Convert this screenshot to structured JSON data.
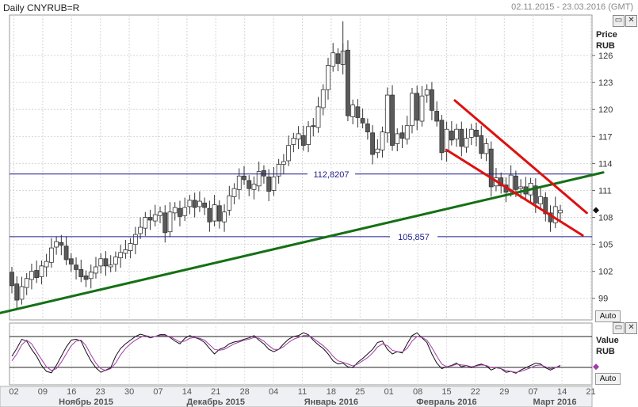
{
  "header": {
    "title": "Daily CNYRUB=R",
    "date_range": "02.11.2015 - 23.03.2016 (GMT)"
  },
  "main_panel": {
    "axis_title_1": "Price",
    "axis_title_2": "RUB",
    "auto_label": "Auto"
  },
  "osc_panel": {
    "axis_title_1": "Value",
    "axis_title_2": "RUB",
    "auto_label": "Auto"
  },
  "colors": {
    "up": "#ffffff",
    "down": "#5a5a5a",
    "hline": "#1c1c8c",
    "support": "#157015",
    "channel": "#dd1111",
    "osc_main": "#111111",
    "osc_signal": "#a23aa8"
  },
  "icons": [
    "window-menu-icon",
    "close-icon"
  ],
  "chart_data": {
    "type": "candlestick",
    "title": "Daily CNYRUB=R",
    "ylabel": "Price RUB",
    "ylim": [
      96.6,
      130.5
    ],
    "y_ticks": [
      99,
      102,
      105,
      108,
      111,
      114,
      117,
      120,
      123,
      126
    ],
    "x_ticks": [
      "02",
      "09",
      "16",
      "23",
      "30",
      "07",
      "14",
      "21",
      "28",
      "04",
      "11",
      "18",
      "25",
      "01",
      "08",
      "15",
      "22",
      "29",
      "07",
      "14",
      "21"
    ],
    "months": [
      "Ноябрь 2015",
      "Декабрь 2015",
      "Январь 2016",
      "Февраль 2016",
      "Март 2016"
    ],
    "levels": [
      {
        "label": "112,8207",
        "value": 112.8207
      },
      {
        "label": "105,857",
        "value": 105.857
      }
    ],
    "trendlines": [
      {
        "name": "support",
        "from": [
          "29.10.2015",
          97.3
        ],
        "to": [
          "24.03.2016",
          113.0
        ]
      },
      {
        "name": "channel-upper",
        "from": [
          "17.02.2016",
          121.0
        ],
        "to": [
          "20.03.2016",
          108.5
        ]
      },
      {
        "name": "channel-lower",
        "from": [
          "15.02.2016",
          115.5
        ],
        "to": [
          "19.03.2016",
          106.0
        ]
      }
    ],
    "series": [
      {
        "name": "price",
        "open_close": [
          [
            101.9,
            100.4
          ],
          [
            100.6,
            98.8
          ],
          [
            98.9,
            100.3
          ],
          [
            100.2,
            101.2
          ],
          [
            101.1,
            102.0
          ],
          [
            102.1,
            101.3
          ],
          [
            101.4,
            102.6
          ],
          [
            102.5,
            103.1
          ],
          [
            103.0,
            104.6
          ],
          [
            104.7,
            105.3
          ],
          [
            105.2,
            104.9
          ],
          [
            104.8,
            103.3
          ],
          [
            103.4,
            102.8
          ],
          [
            102.7,
            102.2
          ],
          [
            102.2,
            101.4
          ],
          [
            101.5,
            101.1
          ],
          [
            101.2,
            101.9
          ],
          [
            101.8,
            102.5
          ],
          [
            102.6,
            103.4
          ],
          [
            103.4,
            102.6
          ],
          [
            102.5,
            102.7
          ],
          [
            102.8,
            103.6
          ],
          [
            103.5,
            104.1
          ],
          [
            104.0,
            104.4
          ],
          [
            104.3,
            105.1
          ],
          [
            105.0,
            106.1
          ],
          [
            106.2,
            106.9
          ],
          [
            106.8,
            108.0
          ],
          [
            108.0,
            107.7
          ],
          [
            107.6,
            108.3
          ],
          [
            108.2,
            108.6
          ],
          [
            108.5,
            106.3
          ],
          [
            106.4,
            108.6
          ],
          [
            108.5,
            109.1
          ],
          [
            109.0,
            108.1
          ],
          [
            108.2,
            109.1
          ],
          [
            109.2,
            109.9
          ],
          [
            109.9,
            109.1
          ],
          [
            109.2,
            109.8
          ],
          [
            109.6,
            109.1
          ],
          [
            109.0,
            107.5
          ],
          [
            107.6,
            109.4
          ],
          [
            109.3,
            107.6
          ],
          [
            107.5,
            108.6
          ],
          [
            108.8,
            110.4
          ],
          [
            110.3,
            111.2
          ],
          [
            111.1,
            112.6
          ],
          [
            112.6,
            112.2
          ],
          [
            112.1,
            111.2
          ],
          [
            111.1,
            111.7
          ],
          [
            111.5,
            113.1
          ],
          [
            113.2,
            112.6
          ],
          [
            112.5,
            110.9
          ],
          [
            111.0,
            112.5
          ],
          [
            112.6,
            113.9
          ],
          [
            113.9,
            114.2
          ],
          [
            114.3,
            116.0
          ],
          [
            116.1,
            116.8
          ],
          [
            116.7,
            117.3
          ],
          [
            117.1,
            116.0
          ],
          [
            116.1,
            118.1
          ],
          [
            118.2,
            118.1
          ],
          [
            118.0,
            120.3
          ],
          [
            120.2,
            122.2
          ],
          [
            122.2,
            124.9
          ],
          [
            124.8,
            126.3
          ],
          [
            126.2,
            125.1
          ],
          [
            125.0,
            126.5
          ],
          [
            126.6,
            119.3
          ],
          [
            119.2,
            120.5
          ],
          [
            120.3,
            119.1
          ],
          [
            119.0,
            118.5
          ],
          [
            118.4,
            117.5
          ],
          [
            117.4,
            115.0
          ],
          [
            115.2,
            115.6
          ],
          [
            115.5,
            117.5
          ],
          [
            117.4,
            121.6
          ],
          [
            121.6,
            116.0
          ],
          [
            116.2,
            117.3
          ],
          [
            117.4,
            116.8
          ],
          [
            116.7,
            118.2
          ],
          [
            118.2,
            121.8
          ],
          [
            121.8,
            118.8
          ],
          [
            118.7,
            121.5
          ],
          [
            121.6,
            122.2
          ],
          [
            122.2,
            119.9
          ],
          [
            119.8,
            118.7
          ],
          [
            118.8,
            115.2
          ],
          [
            115.3,
            117.8
          ],
          [
            117.6,
            116.6
          ],
          [
            116.7,
            117.8
          ],
          [
            117.8,
            115.9
          ],
          [
            115.8,
            116.8
          ],
          [
            116.9,
            117.8
          ],
          [
            117.7,
            117.0
          ],
          [
            117.1,
            115.1
          ],
          [
            115.1,
            116.2
          ],
          [
            115.6,
            111.4
          ],
          [
            111.5,
            112.4
          ],
          [
            112.4,
            111.5
          ],
          [
            111.6,
            110.8
          ],
          [
            110.9,
            112.7
          ],
          [
            112.6,
            111.1
          ],
          [
            111.2,
            111.4
          ],
          [
            111.4,
            110.6
          ],
          [
            110.5,
            111.8
          ],
          [
            111.5,
            109.6
          ],
          [
            109.5,
            110.3
          ],
          [
            110.2,
            108.4
          ],
          [
            108.5,
            107.5
          ],
          [
            107.4,
            109.2
          ],
          [
            108.5,
            108.8
          ]
        ]
      }
    ]
  },
  "osc_data": {
    "type": "line",
    "ylabel": "Value RUB",
    "series": [
      {
        "name": "main",
        "values": [
          0.45,
          0.62,
          0.82,
          0.78,
          0.6,
          0.45,
          0.25,
          0.12,
          0.09,
          0.25,
          0.45,
          0.65,
          0.8,
          0.82,
          0.78,
          0.55,
          0.35,
          0.2,
          0.1,
          0.15,
          0.2,
          0.45,
          0.62,
          0.72,
          0.8,
          0.88,
          0.93,
          0.9,
          0.85,
          0.88,
          0.92,
          0.92,
          0.86,
          0.78,
          0.72,
          0.84,
          0.9,
          0.86,
          0.82,
          0.75,
          0.62,
          0.5,
          0.6,
          0.64,
          0.72,
          0.76,
          0.78,
          0.82,
          0.85,
          0.9,
          0.8,
          0.72,
          0.6,
          0.55,
          0.6,
          0.72,
          0.82,
          0.88,
          0.9,
          0.96,
          0.92,
          0.8,
          0.7,
          0.62,
          0.5,
          0.35,
          0.28,
          0.3,
          0.22,
          0.2,
          0.32,
          0.4,
          0.5,
          0.6,
          0.75,
          0.78,
          0.6,
          0.5,
          0.55,
          0.52,
          0.72,
          0.9,
          0.96,
          0.85,
          0.75,
          0.5,
          0.3,
          0.18,
          0.22,
          0.25,
          0.3,
          0.22,
          0.25,
          0.2,
          0.25,
          0.28,
          0.24,
          0.15,
          0.2,
          0.18,
          0.1,
          0.12,
          0.08,
          0.15,
          0.2,
          0.25,
          0.3,
          0.28,
          0.2,
          0.15,
          0.2,
          0.25
        ]
      },
      {
        "name": "signal",
        "values": [
          0.35,
          0.5,
          0.7,
          0.8,
          0.72,
          0.55,
          0.38,
          0.22,
          0.14,
          0.18,
          0.32,
          0.5,
          0.68,
          0.78,
          0.8,
          0.68,
          0.48,
          0.3,
          0.18,
          0.14,
          0.18,
          0.3,
          0.48,
          0.62,
          0.72,
          0.8,
          0.86,
          0.9,
          0.88,
          0.88,
          0.9,
          0.9,
          0.88,
          0.82,
          0.76,
          0.78,
          0.84,
          0.86,
          0.84,
          0.8,
          0.7,
          0.6,
          0.58,
          0.6,
          0.66,
          0.72,
          0.76,
          0.8,
          0.82,
          0.86,
          0.84,
          0.78,
          0.68,
          0.6,
          0.6,
          0.66,
          0.75,
          0.82,
          0.86,
          0.9,
          0.9,
          0.84,
          0.76,
          0.68,
          0.58,
          0.45,
          0.35,
          0.32,
          0.28,
          0.24,
          0.28,
          0.35,
          0.42,
          0.52,
          0.65,
          0.72,
          0.68,
          0.58,
          0.55,
          0.54,
          0.62,
          0.78,
          0.88,
          0.86,
          0.8,
          0.64,
          0.45,
          0.28,
          0.22,
          0.24,
          0.28,
          0.26,
          0.25,
          0.22,
          0.24,
          0.26,
          0.25,
          0.2,
          0.2,
          0.18,
          0.14,
          0.12,
          0.1,
          0.12,
          0.16,
          0.2,
          0.25,
          0.26,
          0.22,
          0.18,
          0.2,
          0.22
        ]
      }
    ]
  }
}
